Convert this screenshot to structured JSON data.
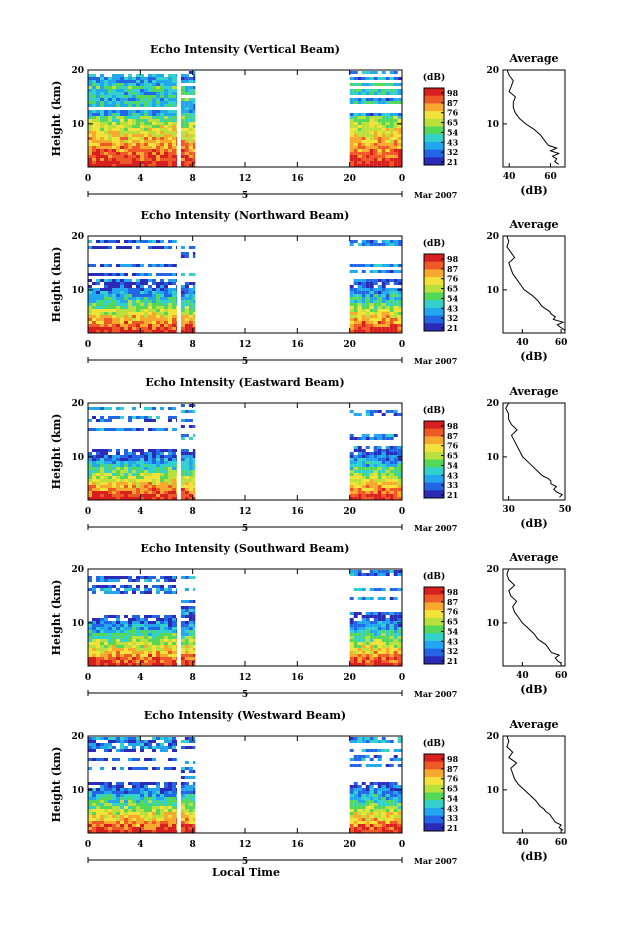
{
  "figure": {
    "xlabel": "Local Time",
    "date_label": "Mar 2007",
    "colorbar_unit": "(dB)",
    "avg_title": "Average",
    "avg_xlabel": "(dB)",
    "ylabel": "Height (km)"
  },
  "colors": {
    "colormap": [
      "#2b2bb8",
      "#2266e6",
      "#22a6ee",
      "#33d0cc",
      "#55d85a",
      "#b9e03c",
      "#f2e23a",
      "#f6a92e",
      "#ee5a27",
      "#d82020"
    ]
  },
  "chart_data": [
    {
      "type": "heatmap",
      "title": "Echo Intensity (Vertical Beam)",
      "xlabel": "Local Time",
      "ylabel": "Height (km)",
      "x_ticks": [
        "0",
        "4",
        "8",
        "12",
        "16",
        "20",
        "0"
      ],
      "y_ticks": [
        "10",
        "20"
      ],
      "xlim": [
        0,
        24
      ],
      "ylim": [
        2,
        20
      ],
      "day_label": "5",
      "date": "Mar 2007",
      "colorbar_unit": "(dB)",
      "colorbar_ticks": [
        "98",
        "87",
        "76",
        "65",
        "54",
        "43",
        "32",
        "21"
      ],
      "data_intervals_hours": [
        [
          0,
          6.8
        ],
        [
          7.1,
          8.2
        ],
        [
          20.0,
          24.0
        ]
      ],
      "echo_top_km": 20,
      "profile": {
        "title": "Average",
        "xlabel": "(dB)",
        "x_ticks": [
          "40",
          "60"
        ],
        "y_ticks": [
          "10",
          "20"
        ],
        "xlim": [
          37,
          67
        ],
        "height_km": [
          2.5,
          3,
          3.5,
          4,
          4.5,
          5,
          5.5,
          6,
          6.5,
          7,
          7.5,
          8,
          9,
          10,
          11,
          12,
          13,
          14,
          15,
          16,
          17,
          18,
          19,
          20
        ],
        "db": [
          64,
          62,
          63,
          61,
          64,
          60,
          63,
          59,
          58,
          57,
          56,
          55,
          52,
          48,
          45,
          43,
          42,
          42,
          43,
          40,
          41,
          42,
          40,
          39
        ]
      }
    },
    {
      "type": "heatmap",
      "title": "Echo Intensity (Northward Beam)",
      "xlabel": "Local Time",
      "ylabel": "Height (km)",
      "x_ticks": [
        "0",
        "4",
        "8",
        "12",
        "16",
        "20",
        "0"
      ],
      "y_ticks": [
        "10",
        "20"
      ],
      "xlim": [
        0,
        24
      ],
      "ylim": [
        2,
        20
      ],
      "day_label": "5",
      "date": "Mar 2007",
      "colorbar_unit": "(dB)",
      "colorbar_ticks": [
        "98",
        "87",
        "76",
        "65",
        "54",
        "43",
        "32",
        "21"
      ],
      "data_intervals_hours": [
        [
          0,
          6.8
        ],
        [
          7.1,
          8.2
        ],
        [
          20.0,
          24.0
        ]
      ],
      "echo_top_km": 12,
      "profile": {
        "title": "Average",
        "xlabel": "(dB)",
        "x_ticks": [
          "40",
          "60"
        ],
        "y_ticks": [
          "10",
          "20"
        ],
        "xlim": [
          30,
          62
        ],
        "height_km": [
          2.5,
          3,
          3.5,
          4,
          4.5,
          5,
          5.5,
          6,
          6.5,
          7,
          7.5,
          8,
          9,
          10,
          11,
          12,
          13,
          14,
          15,
          16,
          17,
          18,
          19,
          20
        ],
        "db": [
          62,
          60,
          58,
          61,
          56,
          57,
          55,
          54,
          52,
          50,
          49,
          48,
          45,
          41,
          39,
          37,
          35,
          34,
          33,
          36,
          34,
          32,
          33,
          32
        ]
      }
    },
    {
      "type": "heatmap",
      "title": "Echo Intensity (Eastward Beam)",
      "xlabel": "Local Time",
      "ylabel": "Height (km)",
      "x_ticks": [
        "0",
        "4",
        "8",
        "12",
        "16",
        "20",
        "0"
      ],
      "y_ticks": [
        "10",
        "20"
      ],
      "xlim": [
        0,
        24
      ],
      "ylim": [
        2,
        20
      ],
      "day_label": "5",
      "date": "Mar 2007",
      "colorbar_unit": "(dB)",
      "colorbar_ticks": [
        "98",
        "87",
        "76",
        "65",
        "54",
        "43",
        "33",
        "21"
      ],
      "data_intervals_hours": [
        [
          0,
          6.8
        ],
        [
          7.1,
          8.2
        ],
        [
          20.0,
          24.0
        ]
      ],
      "echo_top_km": 12,
      "profile": {
        "title": "Average",
        "xlabel": "(dB)",
        "x_ticks": [
          "30",
          "50"
        ],
        "y_ticks": [
          "10",
          "20"
        ],
        "xlim": [
          28,
          50
        ],
        "height_km": [
          2.5,
          3,
          3.5,
          4,
          4.5,
          5,
          5.5,
          6,
          6.5,
          7,
          7.5,
          8,
          9,
          10,
          11,
          12,
          13,
          14,
          15,
          16,
          17,
          18,
          19,
          20
        ],
        "db": [
          48,
          49,
          47,
          46,
          47,
          45,
          45,
          44,
          42,
          41,
          40,
          39,
          37,
          35,
          34,
          33,
          32,
          31,
          33,
          31,
          30,
          30,
          29,
          30
        ]
      }
    },
    {
      "type": "heatmap",
      "title": "Echo Intensity (Southward Beam)",
      "xlabel": "Local Time",
      "ylabel": "Height (km)",
      "x_ticks": [
        "0",
        "4",
        "8",
        "12",
        "16",
        "20",
        "0"
      ],
      "y_ticks": [
        "10",
        "20"
      ],
      "xlim": [
        0,
        24
      ],
      "ylim": [
        2,
        20
      ],
      "day_label": "5",
      "date": "Mar 2007",
      "colorbar_unit": "(dB)",
      "colorbar_ticks": [
        "98",
        "87",
        "76",
        "65",
        "54",
        "43",
        "32",
        "21"
      ],
      "data_intervals_hours": [
        [
          0,
          6.8
        ],
        [
          7.1,
          8.2
        ],
        [
          20.0,
          24.0
        ]
      ],
      "echo_top_km": 12,
      "profile": {
        "title": "Average",
        "xlabel": "(dB)",
        "x_ticks": [
          "40",
          "60"
        ],
        "y_ticks": [
          "10",
          "20"
        ],
        "xlim": [
          30,
          62
        ],
        "height_km": [
          2.5,
          3,
          3.5,
          4,
          4.5,
          5,
          5.5,
          6,
          6.5,
          7,
          7.5,
          8,
          9,
          10,
          11,
          12,
          13,
          14,
          15,
          16,
          17,
          18,
          19,
          20
        ],
        "db": [
          60,
          58,
          57,
          59,
          55,
          54,
          53,
          52,
          50,
          48,
          47,
          46,
          43,
          40,
          38,
          36,
          35,
          37,
          34,
          33,
          36,
          33,
          32,
          33
        ]
      }
    },
    {
      "type": "heatmap",
      "title": "Echo Intensity (Westward Beam)",
      "xlabel": "Local Time",
      "ylabel": "Height (km)",
      "x_ticks": [
        "0",
        "4",
        "8",
        "12",
        "16",
        "20",
        "0"
      ],
      "y_ticks": [
        "10",
        "20"
      ],
      "xlim": [
        0,
        24
      ],
      "ylim": [
        2,
        20
      ],
      "day_label": "5",
      "date": "Mar 2007",
      "colorbar_unit": "(dB)",
      "colorbar_ticks": [
        "98",
        "87",
        "76",
        "65",
        "54",
        "43",
        "33",
        "21"
      ],
      "data_intervals_hours": [
        [
          0,
          6.8
        ],
        [
          7.1,
          8.2
        ],
        [
          20.0,
          24.0
        ]
      ],
      "echo_top_km": 12,
      "profile": {
        "title": "Average",
        "xlabel": "(dB)",
        "x_ticks": [
          "40",
          "60"
        ],
        "y_ticks": [
          "10",
          "20"
        ],
        "xlim": [
          30,
          62
        ],
        "height_km": [
          2.5,
          3,
          3.5,
          4,
          4.5,
          5,
          5.5,
          6,
          6.5,
          7,
          7.5,
          8,
          9,
          10,
          11,
          12,
          13,
          14,
          15,
          16,
          17,
          18,
          19,
          20
        ],
        "db": [
          61,
          59,
          60,
          57,
          56,
          55,
          54,
          52,
          51,
          49,
          48,
          47,
          44,
          41,
          38,
          36,
          35,
          34,
          37,
          33,
          35,
          32,
          33,
          32
        ]
      }
    }
  ]
}
